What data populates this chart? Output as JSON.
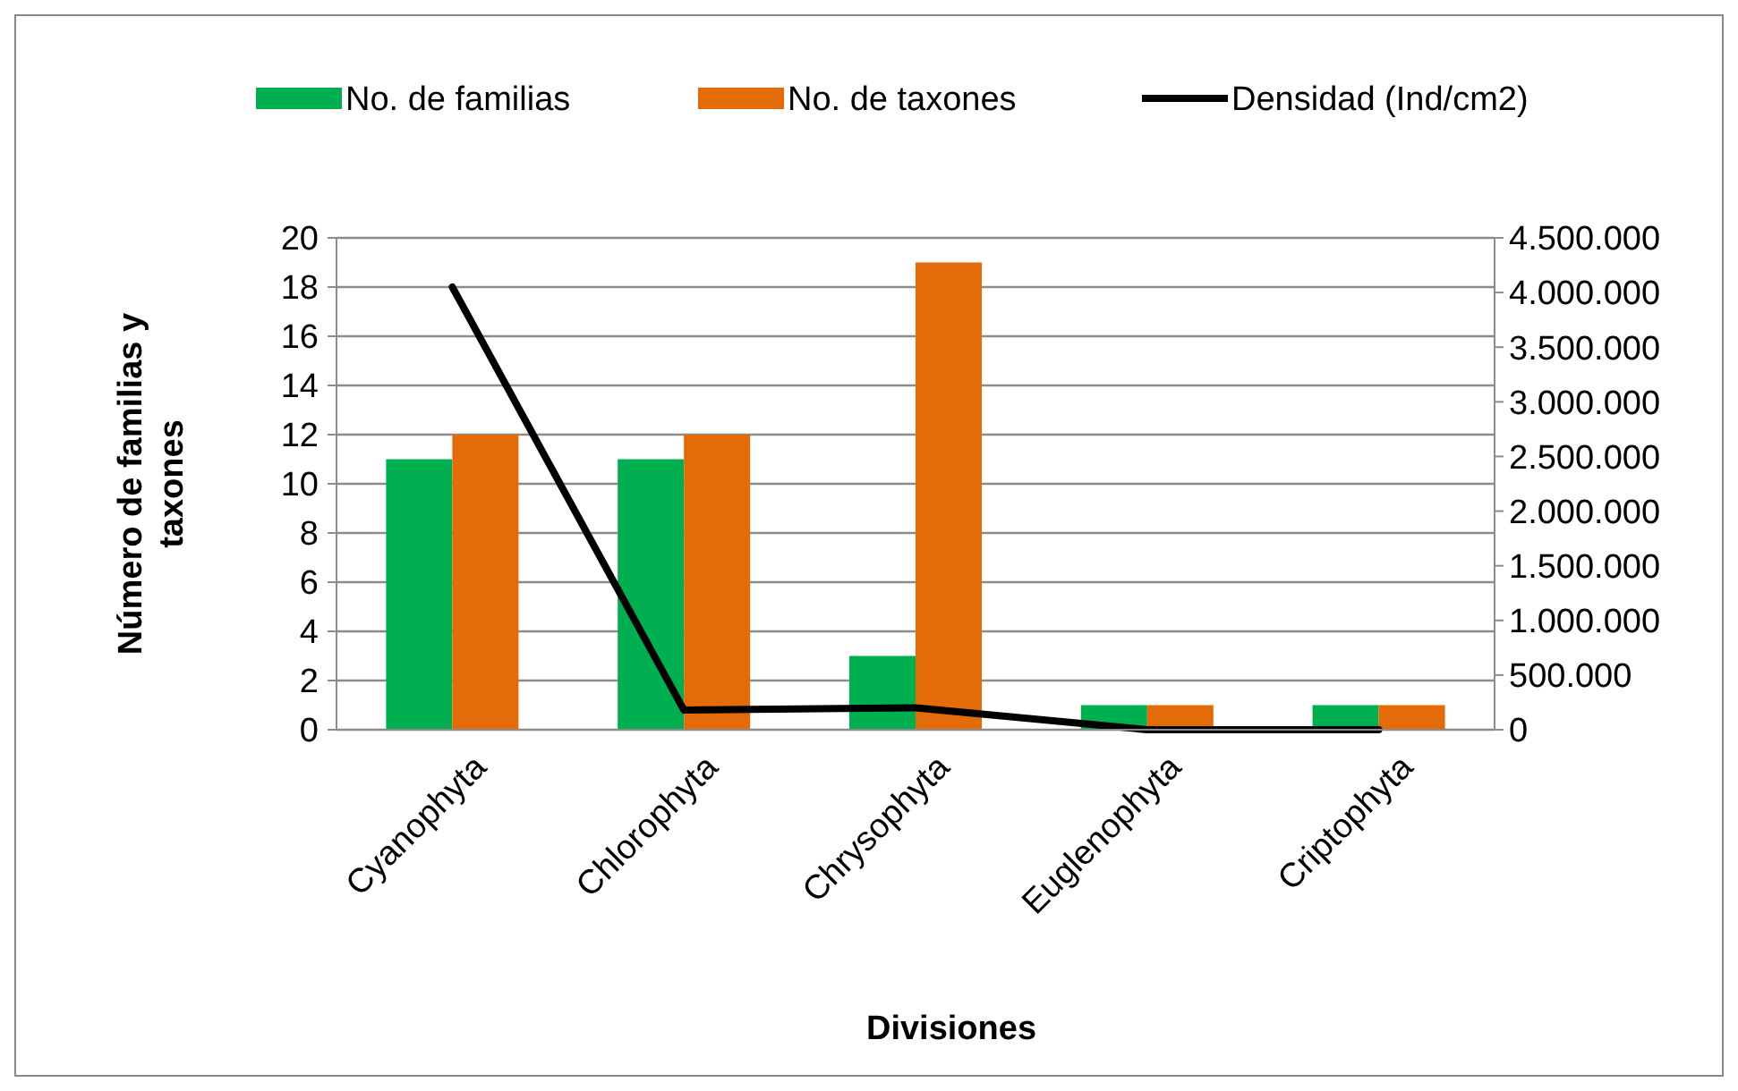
{
  "chart_data": {
    "type": "bar",
    "categories": [
      "Cyanophyta",
      "Chlorophyta",
      "Chrysophyta",
      "Euglenophyta",
      "Criptophyta"
    ],
    "series": [
      {
        "name": "No. de familias",
        "color": "#00b050",
        "values": [
          11,
          11,
          3,
          1,
          1
        ]
      },
      {
        "name": "No. de taxones",
        "color": "#e36c09",
        "values": [
          12,
          12,
          19,
          1,
          1
        ]
      },
      {
        "name": "Densidad (Ind/cm2)",
        "type": "line",
        "axis": "y2",
        "color": "#000000",
        "values": [
          4050000,
          180000,
          200000,
          0,
          0
        ]
      }
    ],
    "xlabel": "Divisiones",
    "ylabel": "Número de familias y taxones",
    "ylim": [
      0,
      20
    ],
    "yticks": [
      0,
      2,
      4,
      6,
      8,
      10,
      12,
      14,
      16,
      18,
      20
    ],
    "y2lim": [
      0,
      4500000
    ],
    "y2ticks": [
      0,
      {
        "value": 500000,
        "label": "500.000"
      },
      {
        "value": 1000000,
        "label": "1.000.000"
      },
      {
        "value": 1500000,
        "label": "1.500.000"
      },
      {
        "value": 2000000,
        "label": "2.000.000"
      },
      {
        "value": 2500000,
        "label": "2.500.000"
      },
      {
        "value": 3000000,
        "label": "3.000.000"
      },
      {
        "value": 3500000,
        "label": "3.500.000"
      },
      {
        "value": 4000000,
        "label": "4.000.000"
      },
      {
        "value": 4500000,
        "label": "4.500.000"
      }
    ],
    "grid": "y",
    "legend": "top",
    "marker": "none",
    "line_style": "solid"
  }
}
